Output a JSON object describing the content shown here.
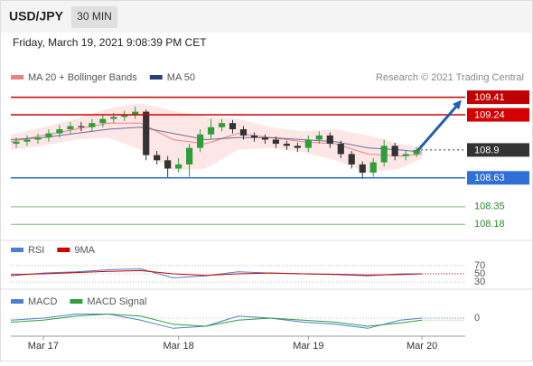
{
  "header": {
    "symbol": "USD/JPY",
    "interval": "30 MIN",
    "datetime": "Friday, March 19, 2021 9:08:39 PM CET"
  },
  "chart_data": [
    {
      "type": "candlestick",
      "credit": "Research © 2021 Trading Central",
      "xlim": [
        0,
        84
      ],
      "xticks": [
        {
          "value": 6,
          "label": "Mar 17"
        },
        {
          "value": 31,
          "label": "Mar 18"
        },
        {
          "value": 55,
          "label": "Mar 19"
        },
        {
          "value": 76,
          "label": "Mar 20"
        }
      ],
      "ylim": [
        108.06,
        109.52
      ],
      "up_color": "#2e9e3a",
      "down_color": "#333333",
      "candles": {
        "x": [
          1,
          3,
          5,
          7,
          9,
          11,
          13,
          15,
          17,
          19,
          21,
          23,
          25,
          27,
          29,
          31,
          33,
          35,
          37,
          39,
          41,
          43,
          45,
          47,
          49,
          51,
          53,
          55,
          57,
          59,
          61,
          63,
          65,
          67,
          69,
          71,
          73,
          75
        ],
        "open": [
          108.96,
          108.98,
          109.0,
          109.02,
          109.06,
          109.1,
          109.13,
          109.12,
          109.16,
          109.2,
          109.22,
          109.24,
          109.27,
          108.85,
          108.8,
          108.72,
          108.76,
          108.92,
          109.05,
          109.12,
          109.16,
          109.1,
          109.04,
          109.02,
          109.0,
          108.96,
          108.94,
          108.92,
          109.0,
          109.04,
          108.96,
          108.86,
          108.76,
          108.68,
          108.78,
          108.94,
          108.84,
          108.86
        ],
        "high": [
          109.02,
          109.04,
          109.06,
          109.1,
          109.14,
          109.17,
          109.17,
          109.2,
          109.24,
          109.26,
          109.28,
          109.32,
          109.29,
          108.89,
          108.84,
          108.82,
          108.96,
          109.1,
          109.2,
          109.2,
          109.19,
          109.13,
          109.07,
          109.05,
          109.03,
          108.99,
          108.97,
          109.04,
          109.08,
          109.07,
          108.99,
          108.89,
          108.79,
          108.82,
          109.0,
          108.97,
          108.89,
          108.93
        ],
        "low": [
          108.92,
          108.94,
          108.96,
          108.98,
          109.02,
          109.06,
          109.08,
          109.08,
          109.12,
          109.16,
          109.18,
          109.2,
          108.8,
          108.76,
          108.63,
          108.68,
          108.64,
          108.88,
          109.01,
          109.08,
          109.06,
          109.0,
          108.98,
          108.96,
          108.92,
          108.9,
          108.88,
          108.88,
          108.96,
          108.92,
          108.82,
          108.72,
          108.62,
          108.64,
          108.74,
          108.8,
          108.8,
          108.83
        ],
        "close": [
          108.98,
          109.0,
          109.02,
          109.06,
          109.1,
          109.13,
          109.12,
          109.16,
          109.2,
          109.22,
          109.24,
          109.27,
          108.85,
          108.8,
          108.72,
          108.76,
          108.92,
          109.05,
          109.12,
          109.16,
          109.1,
          109.04,
          109.02,
          109.0,
          108.96,
          108.94,
          108.92,
          109.0,
          109.04,
          108.96,
          108.86,
          108.76,
          108.68,
          108.78,
          108.94,
          108.84,
          108.86,
          108.9
        ]
      },
      "x": [
        0,
        6,
        12,
        18,
        24,
        30,
        36,
        42,
        48,
        54,
        60,
        66,
        72,
        76
      ],
      "band": {
        "name": "MA 20 + Bollinger Bands",
        "color": "#f08080",
        "upper": [
          109.05,
          109.12,
          109.2,
          109.3,
          109.35,
          109.28,
          109.22,
          109.2,
          109.12,
          109.08,
          109.1,
          109.04,
          108.96,
          108.92
        ],
        "lower": [
          108.9,
          108.94,
          109.0,
          109.02,
          108.9,
          108.7,
          108.72,
          108.9,
          108.92,
          108.88,
          108.8,
          108.68,
          108.72,
          108.82
        ],
        "values": [
          108.98,
          109.04,
          109.1,
          109.16,
          109.16,
          109.0,
          108.96,
          109.06,
          109.02,
          108.98,
          108.96,
          108.86,
          108.84,
          108.86
        ]
      },
      "series": [
        {
          "name": "MA 50",
          "color": "#2b3f7a",
          "values": [
            109.0,
            109.02,
            109.06,
            109.1,
            109.12,
            109.06,
            109.0,
            109.02,
            109.02,
            109.0,
            108.98,
            108.92,
            108.9,
            108.88
          ]
        }
      ],
      "levels": [
        {
          "value": 109.41,
          "color": "#c00000",
          "box": true,
          "dotted": false
        },
        {
          "value": 109.24,
          "color": "#d40000",
          "box": true,
          "dotted": false
        },
        {
          "value": 108.9,
          "color": "#333333",
          "box": true,
          "dotted": true
        },
        {
          "value": 108.63,
          "color": "#2f6fd6",
          "box": true,
          "dotted": false
        },
        {
          "value": 108.35,
          "color": "#2a8a2a",
          "box": false,
          "dotted": false
        },
        {
          "value": 108.18,
          "color": "#2a8a2a",
          "box": false,
          "dotted": false
        }
      ]
    },
    {
      "type": "line",
      "ylim": [
        17,
        94
      ],
      "yticks": [
        70,
        50,
        30
      ],
      "x": [
        0,
        6,
        12,
        18,
        24,
        30,
        36,
        42,
        48,
        54,
        60,
        66,
        72,
        76
      ],
      "series": [
        {
          "name": "RSI",
          "color": "#4f7fd0",
          "values": [
            45,
            52,
            55,
            60,
            62,
            40,
            45,
            55,
            52,
            50,
            48,
            45,
            50,
            50
          ]
        },
        {
          "name": "9MA",
          "color": "#d00000",
          "values": [
            48,
            50,
            53,
            56,
            58,
            50,
            46,
            50,
            52,
            50,
            49,
            47,
            48,
            50
          ]
        }
      ]
    },
    {
      "type": "line",
      "ylim": [
        -0.04,
        0.06
      ],
      "yticks": [
        0
      ],
      "x": [
        0,
        6,
        12,
        18,
        24,
        30,
        36,
        42,
        48,
        54,
        60,
        66,
        72,
        76
      ],
      "series": [
        {
          "name": "MACD",
          "color": "#4f7fd0",
          "values": [
            -0.005,
            0.0,
            0.01,
            0.01,
            -0.005,
            -0.025,
            -0.02,
            0.005,
            0.0,
            -0.01,
            -0.015,
            -0.025,
            -0.005,
            0.0
          ]
        },
        {
          "name": "MACD Signal",
          "color": "#2e9e3a",
          "values": [
            -0.01,
            -0.005,
            0.005,
            0.01,
            0.005,
            -0.015,
            -0.02,
            -0.005,
            0.0,
            -0.005,
            -0.01,
            -0.02,
            -0.012,
            -0.005
          ]
        }
      ]
    }
  ]
}
